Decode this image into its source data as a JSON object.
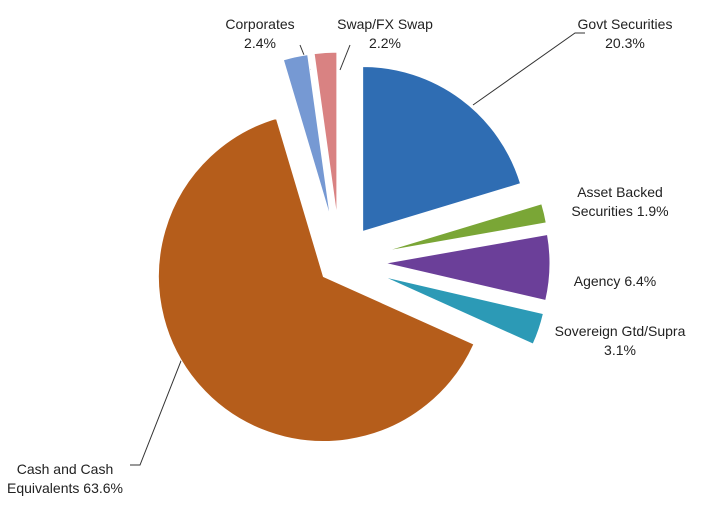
{
  "chart_data": {
    "type": "pie",
    "categories": [
      "Govt Securities",
      "Asset Backed Securities",
      "Agency",
      "Sovereign Gtd/Supra",
      "Cash and Cash Equivalents",
      "Corporates",
      "Swap/FX Swap"
    ],
    "values": [
      20.3,
      1.9,
      6.4,
      3.1,
      63.6,
      2.4,
      2.2
    ],
    "value_labels": [
      "20.3%",
      "1.9%",
      "6.4%",
      "3.1%",
      "63.6%",
      "2.4%",
      "2.2%"
    ],
    "colors": [
      "#2f6db3",
      "#7aa636",
      "#6b3f99",
      "#2c9ab6",
      "#b55d1b",
      "#7699d3",
      "#d98282"
    ]
  }
}
